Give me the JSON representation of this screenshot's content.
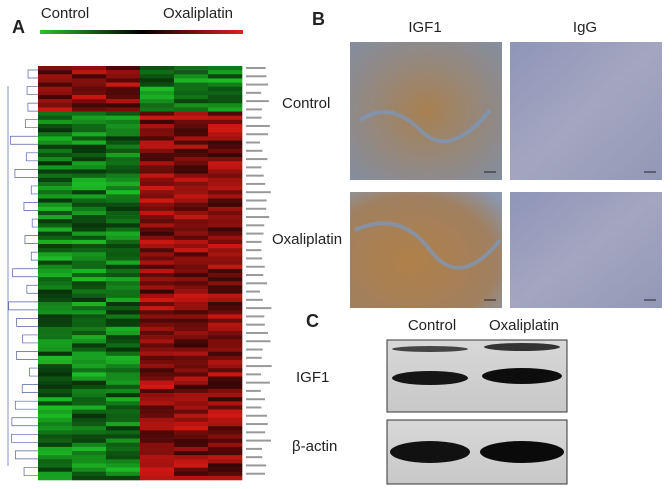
{
  "panel_a": {
    "letter": "A",
    "groups": [
      "Control",
      "Oxaliplatin"
    ]
  },
  "panel_b": {
    "letter": "B",
    "columns": [
      "IGF1",
      "IgG"
    ],
    "rows": [
      "Control",
      "Oxaliplatin"
    ]
  },
  "panel_c": {
    "letter": "C",
    "columns": [
      "Control",
      "Oxaliplatin"
    ],
    "rows": [
      "IGF1",
      "β-actin"
    ]
  }
}
